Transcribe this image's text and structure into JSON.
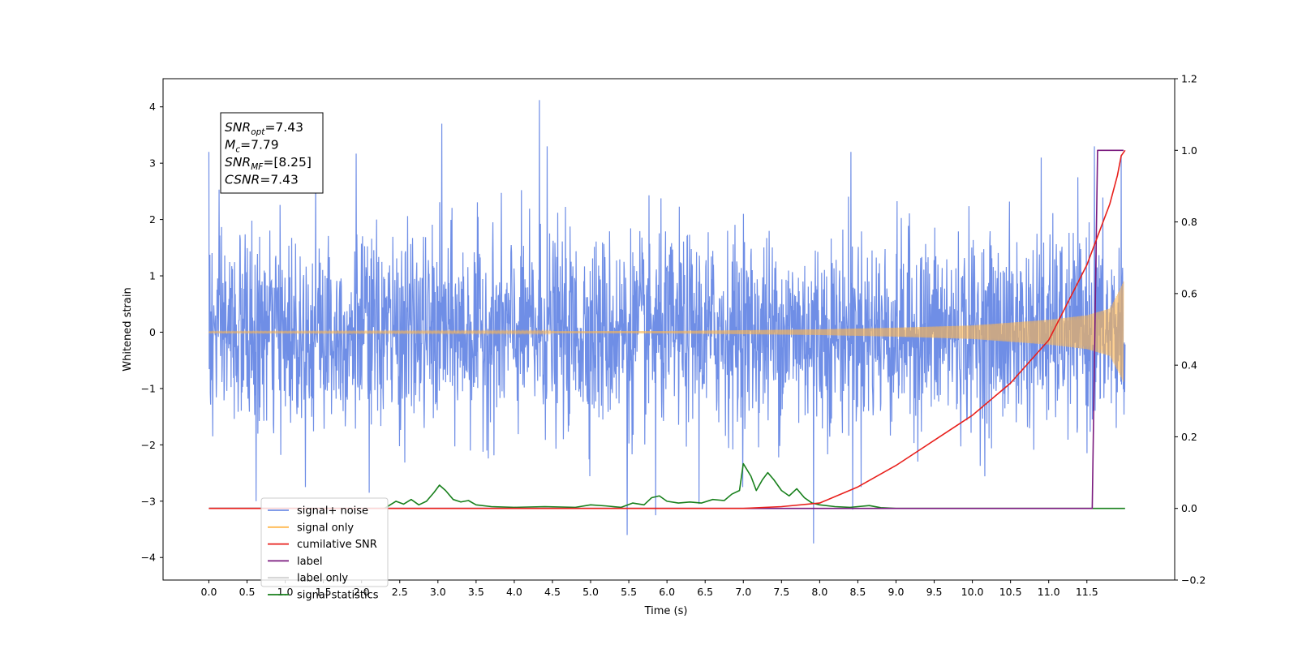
{
  "chart_data": {
    "type": "line",
    "xlabel": "Time (s)",
    "ylabel": "Whitened strain",
    "xlim": [
      -0.6,
      12.65
    ],
    "ylim": [
      -4.4,
      4.5
    ],
    "y2lim": [
      -0.2,
      1.2
    ],
    "x_ticks": [
      0.0,
      0.5,
      1.0,
      1.5,
      2.0,
      2.5,
      3.0,
      3.5,
      4.0,
      4.5,
      5.0,
      5.5,
      6.0,
      6.5,
      7.0,
      7.5,
      8.0,
      8.5,
      9.0,
      9.5,
      10.0,
      10.5,
      11.0,
      11.5
    ],
    "x_tick_labels": [
      "0.0",
      "0.5",
      "1.0",
      "1.5",
      "2.0",
      "2.5",
      "3.0",
      "3.5",
      "4.0",
      "4.5",
      "5.0",
      "5.5",
      "6.0",
      "6.5",
      "7.0",
      "7.5",
      "8.0",
      "8.5",
      "9.0",
      "9.5",
      "10.0",
      "10.5",
      "11.0",
      "11.5"
    ],
    "y_ticks": [
      4,
      3,
      2,
      1,
      0,
      -1,
      -2,
      -3,
      -4
    ],
    "y_tick_labels": [
      "4",
      "3",
      "2",
      "1",
      "0",
      "−1",
      "−2",
      "−3",
      "−4"
    ],
    "y2_ticks": [
      1.2,
      1.0,
      0.8,
      0.6,
      0.4,
      0.2,
      0.0,
      -0.2
    ],
    "y2_tick_labels": [
      "1.2",
      "1.0",
      "0.8",
      "0.6",
      "0.4",
      "0.2",
      "0.0",
      "−0.2"
    ],
    "legend_placement": "lower-left",
    "grid": false,
    "series": [
      {
        "name": "signal+ noise",
        "axis": "left",
        "color": "#6f8ee6",
        "x_range": [
          0.0,
          12.0
        ],
        "noise_std": 0.85,
        "peaks": [
          [
            0.0,
            3.2
          ],
          [
            0.05,
            -1.85
          ],
          [
            0.62,
            -3.0
          ],
          [
            1.4,
            3.0
          ],
          [
            1.93,
            3.17
          ],
          [
            2.1,
            -2.85
          ],
          [
            3.05,
            3.7
          ],
          [
            4.33,
            4.12
          ],
          [
            4.43,
            3.3
          ],
          [
            5.48,
            -3.6
          ],
          [
            5.85,
            -3.25
          ],
          [
            6.42,
            -3.05
          ],
          [
            7.0,
            2.1
          ],
          [
            7.92,
            -3.75
          ],
          [
            8.41,
            3.2
          ],
          [
            8.43,
            -3.15
          ],
          [
            10.9,
            3.1
          ],
          [
            11.6,
            3.3
          ],
          [
            11.95,
            3.15
          ]
        ]
      },
      {
        "name": "signal only",
        "axis": "left",
        "color": "#ffb74d",
        "x_range": [
          0.0,
          11.98
        ],
        "envelope": [
          [
            0.0,
            0.01
          ],
          [
            6.0,
            0.02
          ],
          [
            8.0,
            0.05
          ],
          [
            9.0,
            0.08
          ],
          [
            10.0,
            0.12
          ],
          [
            11.0,
            0.22
          ],
          [
            11.5,
            0.3
          ],
          [
            11.8,
            0.42
          ],
          [
            11.93,
            0.75
          ],
          [
            11.98,
            0.9
          ]
        ]
      },
      {
        "name": "cumilative SNR",
        "axis": "right",
        "color": "#e8201c",
        "points": [
          [
            0.0,
            0.0
          ],
          [
            6.0,
            0.0
          ],
          [
            7.0,
            0.0
          ],
          [
            7.5,
            0.005
          ],
          [
            8.0,
            0.015
          ],
          [
            8.5,
            0.06
          ],
          [
            9.0,
            0.12
          ],
          [
            9.5,
            0.19
          ],
          [
            10.0,
            0.26
          ],
          [
            10.5,
            0.35
          ],
          [
            11.0,
            0.47
          ],
          [
            11.5,
            0.68
          ],
          [
            11.8,
            0.85
          ],
          [
            11.9,
            0.93
          ],
          [
            11.95,
            0.985
          ],
          [
            12.0,
            1.0
          ]
        ]
      },
      {
        "name": "label",
        "axis": "right",
        "color": "#7a1a7e",
        "points": [
          [
            0.0,
            0.0
          ],
          [
            11.57,
            0.0
          ],
          [
            11.64,
            1.0
          ],
          [
            11.98,
            1.0
          ]
        ]
      },
      {
        "name": "label only",
        "axis": "right",
        "color": "#cfcfcf",
        "points": []
      },
      {
        "name": "signal statistics",
        "axis": "right",
        "color": "#18801c",
        "points": [
          [
            0.0,
            0.0
          ],
          [
            2.3,
            0.0
          ],
          [
            2.45,
            0.02
          ],
          [
            2.55,
            0.012
          ],
          [
            2.65,
            0.025
          ],
          [
            2.75,
            0.01
          ],
          [
            2.85,
            0.02
          ],
          [
            2.95,
            0.045
          ],
          [
            3.02,
            0.065
          ],
          [
            3.1,
            0.05
          ],
          [
            3.2,
            0.025
          ],
          [
            3.3,
            0.018
          ],
          [
            3.4,
            0.022
          ],
          [
            3.5,
            0.01
          ],
          [
            3.7,
            0.005
          ],
          [
            4.0,
            0.003
          ],
          [
            4.4,
            0.005
          ],
          [
            4.8,
            0.003
          ],
          [
            5.0,
            0.01
          ],
          [
            5.2,
            0.007
          ],
          [
            5.4,
            0.003
          ],
          [
            5.55,
            0.015
          ],
          [
            5.7,
            0.01
          ],
          [
            5.8,
            0.03
          ],
          [
            5.9,
            0.035
          ],
          [
            6.0,
            0.02
          ],
          [
            6.15,
            0.015
          ],
          [
            6.3,
            0.018
          ],
          [
            6.45,
            0.015
          ],
          [
            6.6,
            0.025
          ],
          [
            6.75,
            0.022
          ],
          [
            6.85,
            0.04
          ],
          [
            6.95,
            0.05
          ],
          [
            7.0,
            0.125
          ],
          [
            7.1,
            0.09
          ],
          [
            7.17,
            0.05
          ],
          [
            7.25,
            0.08
          ],
          [
            7.32,
            0.1
          ],
          [
            7.4,
            0.08
          ],
          [
            7.5,
            0.05
          ],
          [
            7.6,
            0.035
          ],
          [
            7.7,
            0.055
          ],
          [
            7.8,
            0.03
          ],
          [
            7.9,
            0.015
          ],
          [
            8.0,
            0.01
          ],
          [
            8.2,
            0.005
          ],
          [
            8.4,
            0.003
          ],
          [
            8.65,
            0.008
          ],
          [
            8.8,
            0.002
          ],
          [
            9.0,
            0.0
          ],
          [
            12.0,
            0.0
          ]
        ]
      }
    ],
    "annotations": [
      {
        "base": "SNR",
        "sub": "opt",
        "rest": "=7.43"
      },
      {
        "base": "M",
        "sub": "c",
        "rest": "=7.79"
      },
      {
        "base": "SNR",
        "sub": "MF",
        "rest": "=[8.25]"
      },
      {
        "base": "CSNR",
        "sub": "",
        "rest": "=7.43"
      }
    ]
  }
}
